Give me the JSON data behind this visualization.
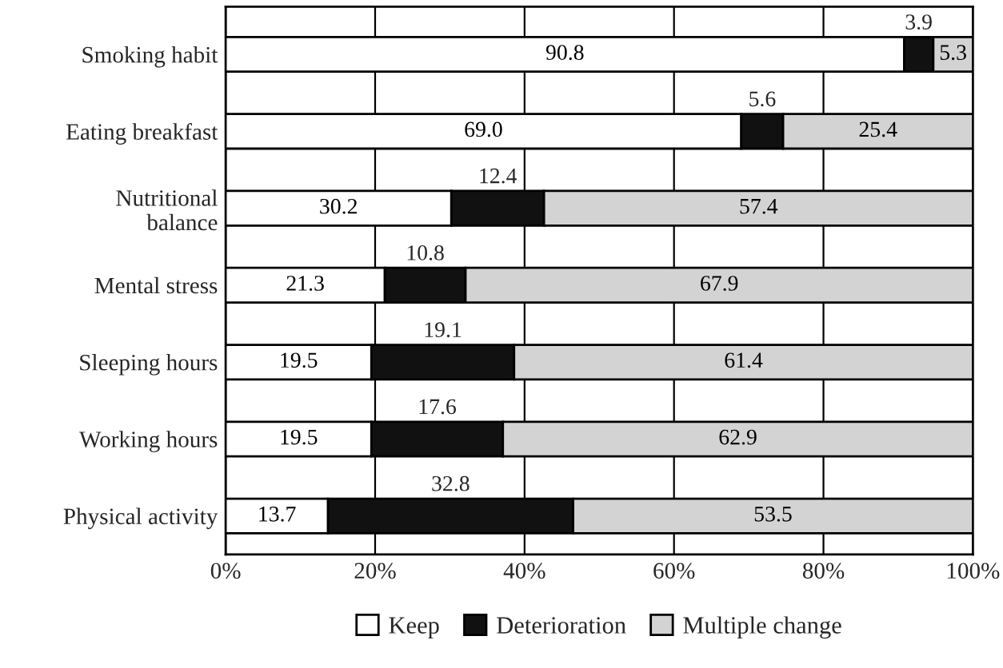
{
  "chart_data": {
    "type": "bar",
    "orientation": "horizontal",
    "stacked": true,
    "categories": [
      "Smoking habit",
      "Eating breakfast",
      "Nutritional\nbalance",
      "Mental stress",
      "Sleeping hours",
      "Working hours",
      "Physical activity"
    ],
    "series": [
      {
        "name": "Keep",
        "color": "#ffffff",
        "values": [
          90.8,
          69.0,
          30.2,
          21.3,
          19.5,
          19.5,
          13.7
        ],
        "value_labels": [
          "90.8",
          "69.0",
          "30.2",
          "21.3",
          "19.5",
          "19.5",
          "13.7"
        ]
      },
      {
        "name": "Deterioration",
        "color": "#111111",
        "values": [
          3.9,
          5.6,
          12.4,
          10.8,
          19.1,
          17.6,
          32.8
        ],
        "value_labels": [
          "3.9",
          "5.6",
          "12.4",
          "10.8",
          "19.1",
          "17.6",
          "32.8"
        ]
      },
      {
        "name": "Multiple change",
        "color": "#d3d3d3",
        "values": [
          5.3,
          25.4,
          57.4,
          67.9,
          61.4,
          62.9,
          53.5
        ],
        "value_labels": [
          "5.3",
          "25.4",
          "57.4",
          "67.9",
          "61.4",
          "62.9",
          "53.5"
        ]
      }
    ],
    "xlim": [
      0,
      100
    ],
    "xticks": [
      {
        "value": 0,
        "label": "0%"
      },
      {
        "value": 20,
        "label": "20%"
      },
      {
        "value": 40,
        "label": "40%"
      },
      {
        "value": 60,
        "label": "60%"
      },
      {
        "value": 80,
        "label": "80%"
      },
      {
        "value": 100,
        "label": "100%"
      }
    ],
    "grid": "x",
    "legend": "bottom"
  }
}
